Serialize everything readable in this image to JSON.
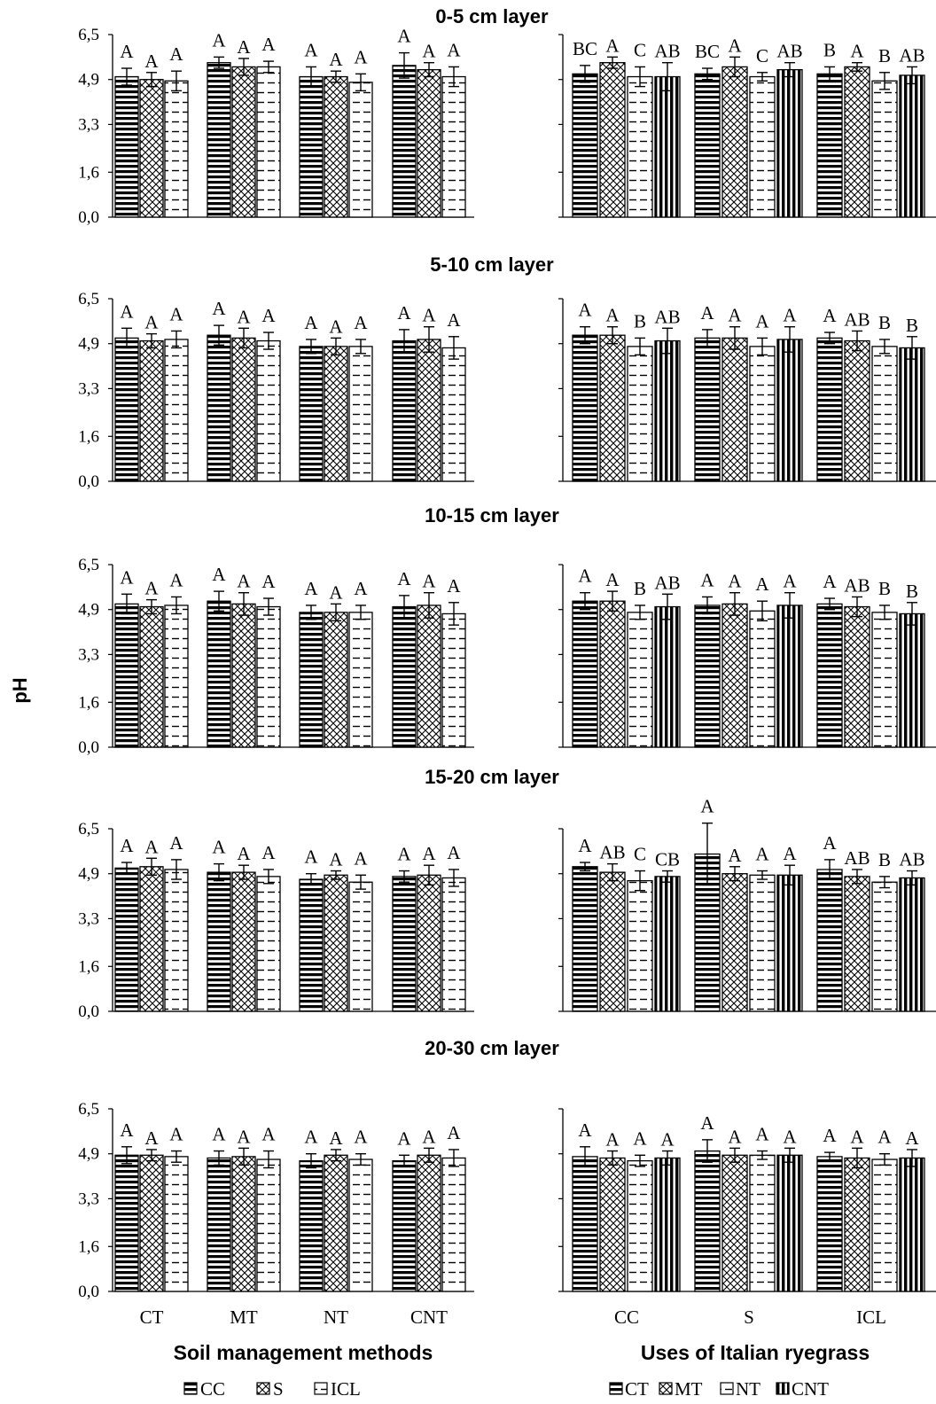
{
  "y_axis_label": "pH",
  "x_titles": {
    "left": "Soil management methods",
    "right": "Uses of Italian ryegrass"
  },
  "legends": {
    "left": [
      "CC",
      "S",
      "ICL"
    ],
    "right": [
      "CT",
      "MT",
      "NT",
      "CNT"
    ]
  },
  "colors": {
    "bar_fill": "#ffffff",
    "bar_stroke": "#000000",
    "pattern_ink": "#000000"
  },
  "chart_data": [
    {
      "type": "bar",
      "title": "0-5 cm layer",
      "ylim": [
        0,
        6.5
      ],
      "yticks": [
        "6,5",
        "4,9",
        "3,3",
        "1,6",
        "0,0"
      ],
      "ytick_values": [
        6.5,
        4.9,
        3.3,
        1.6,
        0.0
      ],
      "left": {
        "categories": [
          "CT",
          "MT",
          "NT",
          "CNT"
        ],
        "series": [
          {
            "name": "CC",
            "values": [
              5.0,
              5.5,
              5.0,
              5.4
            ],
            "errors": [
              0.3,
              0.2,
              0.35,
              0.45
            ],
            "letters": [
              "A",
              "A",
              "A",
              "A"
            ]
          },
          {
            "name": "S",
            "values": [
              4.9,
              5.35,
              5.0,
              5.25
            ],
            "errors": [
              0.25,
              0.3,
              0.2,
              0.25
            ],
            "letters": [
              "A",
              "A",
              "A",
              "A"
            ]
          },
          {
            "name": "ICL",
            "values": [
              4.85,
              5.35,
              4.8,
              5.0
            ],
            "errors": [
              0.35,
              0.2,
              0.3,
              0.35
            ],
            "letters": [
              "A",
              "A",
              "A",
              "A"
            ]
          }
        ]
      },
      "right": {
        "categories": [
          "CC",
          "S",
          "ICL"
        ],
        "series": [
          {
            "name": "CT",
            "values": [
              5.1,
              5.1,
              5.1
            ],
            "errors": [
              0.3,
              0.2,
              0.25
            ],
            "letters": [
              "BC",
              "BC",
              "B"
            ]
          },
          {
            "name": "MT",
            "values": [
              5.5,
              5.35,
              5.35
            ],
            "errors": [
              0.2,
              0.35,
              0.15
            ],
            "letters": [
              "A",
              "A",
              "A"
            ]
          },
          {
            "name": "NT",
            "values": [
              5.0,
              5.0,
              4.85
            ],
            "errors": [
              0.35,
              0.15,
              0.3
            ],
            "letters": [
              "C",
              "C",
              "B"
            ]
          },
          {
            "name": "CNT",
            "values": [
              5.0,
              5.25,
              5.05
            ],
            "errors": [
              0.5,
              0.25,
              0.3
            ],
            "letters": [
              "AB",
              "AB",
              "AB"
            ]
          }
        ]
      }
    },
    {
      "type": "bar",
      "title": "5-10 cm layer",
      "ylim": [
        0,
        6.5
      ],
      "yticks": [
        "6,5",
        "4,9",
        "3,3",
        "1,6",
        "0,0"
      ],
      "ytick_values": [
        6.5,
        4.9,
        3.3,
        1.6,
        0.0
      ],
      "left": {
        "categories": [
          "CT",
          "MT",
          "NT",
          "CNT"
        ],
        "series": [
          {
            "name": "CC",
            "values": [
              5.1,
              5.2,
              4.8,
              5.0
            ],
            "errors": [
              0.35,
              0.35,
              0.25,
              0.4
            ],
            "letters": [
              "A",
              "A",
              "A",
              "A"
            ]
          },
          {
            "name": "S",
            "values": [
              5.0,
              5.1,
              4.8,
              5.05
            ],
            "errors": [
              0.25,
              0.35,
              0.3,
              0.45
            ],
            "letters": [
              "A",
              "A",
              "A",
              "A"
            ]
          },
          {
            "name": "ICL",
            "values": [
              5.05,
              5.0,
              4.8,
              4.75
            ],
            "errors": [
              0.3,
              0.3,
              0.25,
              0.4
            ],
            "letters": [
              "A",
              "A",
              "A",
              "A"
            ]
          }
        ]
      },
      "right": {
        "categories": [
          "CC",
          "S",
          "ICL"
        ],
        "series": [
          {
            "name": "CT",
            "values": [
              5.2,
              5.1,
              5.1
            ],
            "errors": [
              0.3,
              0.3,
              0.2
            ],
            "letters": [
              "A",
              "A",
              "A"
            ]
          },
          {
            "name": "MT",
            "values": [
              5.2,
              5.1,
              5.0
            ],
            "errors": [
              0.3,
              0.4,
              0.35
            ],
            "letters": [
              "A",
              "A",
              "AB"
            ]
          },
          {
            "name": "NT",
            "values": [
              4.8,
              4.8,
              4.8
            ],
            "errors": [
              0.3,
              0.3,
              0.25
            ],
            "letters": [
              "B",
              "A",
              "B"
            ]
          },
          {
            "name": "CNT",
            "values": [
              5.0,
              5.05,
              4.75
            ],
            "errors": [
              0.45,
              0.45,
              0.4
            ],
            "letters": [
              "AB",
              "A",
              "B"
            ]
          }
        ]
      }
    },
    {
      "type": "bar",
      "title": "10-15 cm layer",
      "ylim": [
        0,
        6.5
      ],
      "yticks": [
        "6,5",
        "4,9",
        "3,3",
        "1,6",
        "0,0"
      ],
      "ytick_values": [
        6.5,
        4.9,
        3.3,
        1.6,
        0.0
      ],
      "left": {
        "categories": [
          "CT",
          "MT",
          "NT",
          "CNT"
        ],
        "series": [
          {
            "name": "CC",
            "values": [
              5.1,
              5.2,
              4.8,
              5.0
            ],
            "errors": [
              0.35,
              0.35,
              0.25,
              0.4
            ],
            "letters": [
              "A",
              "A",
              "A",
              "A"
            ]
          },
          {
            "name": "S",
            "values": [
              5.0,
              5.1,
              4.8,
              5.05
            ],
            "errors": [
              0.25,
              0.4,
              0.3,
              0.45
            ],
            "letters": [
              "A",
              "A",
              "A",
              "A"
            ]
          },
          {
            "name": "ICL",
            "values": [
              5.05,
              5.0,
              4.8,
              4.75
            ],
            "errors": [
              0.3,
              0.3,
              0.25,
              0.4
            ],
            "letters": [
              "A",
              "A",
              "A",
              "A"
            ]
          }
        ]
      },
      "right": {
        "categories": [
          "CC",
          "S",
          "ICL"
        ],
        "series": [
          {
            "name": "CT",
            "values": [
              5.2,
              5.05,
              5.1
            ],
            "errors": [
              0.3,
              0.3,
              0.2
            ],
            "letters": [
              "A",
              "A",
              "A"
            ]
          },
          {
            "name": "MT",
            "values": [
              5.2,
              5.1,
              5.0
            ],
            "errors": [
              0.35,
              0.4,
              0.35
            ],
            "letters": [
              "A",
              "A",
              "AB"
            ]
          },
          {
            "name": "NT",
            "values": [
              4.8,
              4.85,
              4.8
            ],
            "errors": [
              0.25,
              0.35,
              0.25
            ],
            "letters": [
              "B",
              "A",
              "B"
            ]
          },
          {
            "name": "CNT",
            "values": [
              5.0,
              5.05,
              4.75
            ],
            "errors": [
              0.45,
              0.45,
              0.4
            ],
            "letters": [
              "AB",
              "A",
              "B"
            ]
          }
        ]
      }
    },
    {
      "type": "bar",
      "title": "15-20 cm layer",
      "ylim": [
        0,
        6.5
      ],
      "yticks": [
        "6,5",
        "4,9",
        "3,3",
        "1,6",
        "0,0"
      ],
      "ytick_values": [
        6.5,
        4.9,
        3.3,
        1.6,
        0.0
      ],
      "left": {
        "categories": [
          "CT",
          "MT",
          "NT",
          "CNT"
        ],
        "series": [
          {
            "name": "CC",
            "values": [
              5.1,
              4.95,
              4.7,
              4.8
            ],
            "errors": [
              0.2,
              0.3,
              0.2,
              0.2
            ],
            "letters": [
              "A",
              "A",
              "A",
              "A"
            ]
          },
          {
            "name": "S",
            "values": [
              5.15,
              4.95,
              4.85,
              4.85
            ],
            "errors": [
              0.3,
              0.25,
              0.15,
              0.35
            ],
            "letters": [
              "A",
              "A",
              "A",
              "A"
            ]
          },
          {
            "name": "ICL",
            "values": [
              5.05,
              4.8,
              4.6,
              4.75
            ],
            "errors": [
              0.35,
              0.25,
              0.25,
              0.3
            ],
            "letters": [
              "A",
              "A",
              "A",
              "A"
            ]
          }
        ]
      },
      "right": {
        "categories": [
          "CC",
          "S",
          "ICL"
        ],
        "series": [
          {
            "name": "CT",
            "values": [
              5.15,
              5.6,
              5.05
            ],
            "errors": [
              0.15,
              1.1,
              0.35
            ],
            "letters": [
              "A",
              "A",
              "A"
            ]
          },
          {
            "name": "MT",
            "values": [
              4.95,
              4.9,
              4.8
            ],
            "errors": [
              0.3,
              0.25,
              0.25
            ],
            "letters": [
              "AB",
              "A",
              "AB"
            ]
          },
          {
            "name": "NT",
            "values": [
              4.65,
              4.85,
              4.6
            ],
            "errors": [
              0.35,
              0.15,
              0.2
            ],
            "letters": [
              "C",
              "A",
              "B"
            ]
          },
          {
            "name": "CNT",
            "values": [
              4.8,
              4.85,
              4.75
            ],
            "errors": [
              0.2,
              0.35,
              0.25
            ],
            "letters": [
              "CB",
              "A",
              "AB"
            ]
          }
        ]
      }
    },
    {
      "type": "bar",
      "title": "20-30 cm layer",
      "ylim": [
        0,
        6.5
      ],
      "yticks": [
        "6,5",
        "4,9",
        "3,3",
        "1,6",
        "0,0"
      ],
      "ytick_values": [
        6.5,
        4.9,
        3.3,
        1.6,
        0.0
      ],
      "left": {
        "categories": [
          "CT",
          "MT",
          "NT",
          "CNT"
        ],
        "series": [
          {
            "name": "CC",
            "values": [
              4.85,
              4.75,
              4.65,
              4.65
            ],
            "errors": [
              0.3,
              0.25,
              0.25,
              0.2
            ],
            "letters": [
              "A",
              "A",
              "A",
              "A"
            ]
          },
          {
            "name": "S",
            "values": [
              4.85,
              4.8,
              4.85,
              4.85
            ],
            "errors": [
              0.2,
              0.3,
              0.2,
              0.25
            ],
            "letters": [
              "A",
              "A",
              "A",
              "A"
            ]
          },
          {
            "name": "ICL",
            "values": [
              4.8,
              4.7,
              4.7,
              4.75
            ],
            "errors": [
              0.2,
              0.3,
              0.2,
              0.3
            ],
            "letters": [
              "A",
              "A",
              "A",
              "A"
            ]
          }
        ]
      },
      "right": {
        "categories": [
          "CC",
          "S",
          "ICL"
        ],
        "series": [
          {
            "name": "CT",
            "values": [
              4.8,
              5.0,
              4.8
            ],
            "errors": [
              0.35,
              0.4,
              0.15
            ],
            "letters": [
              "A",
              "A",
              "A"
            ]
          },
          {
            "name": "MT",
            "values": [
              4.75,
              4.85,
              4.75
            ],
            "errors": [
              0.25,
              0.25,
              0.35
            ],
            "letters": [
              "A",
              "A",
              "A"
            ]
          },
          {
            "name": "NT",
            "values": [
              4.65,
              4.85,
              4.7
            ],
            "errors": [
              0.2,
              0.15,
              0.2
            ],
            "letters": [
              "A",
              "A",
              "A"
            ]
          },
          {
            "name": "CNT",
            "values": [
              4.75,
              4.85,
              4.75
            ],
            "errors": [
              0.25,
              0.25,
              0.3
            ],
            "letters": [
              "A",
              "A",
              "A"
            ]
          }
        ]
      }
    }
  ]
}
